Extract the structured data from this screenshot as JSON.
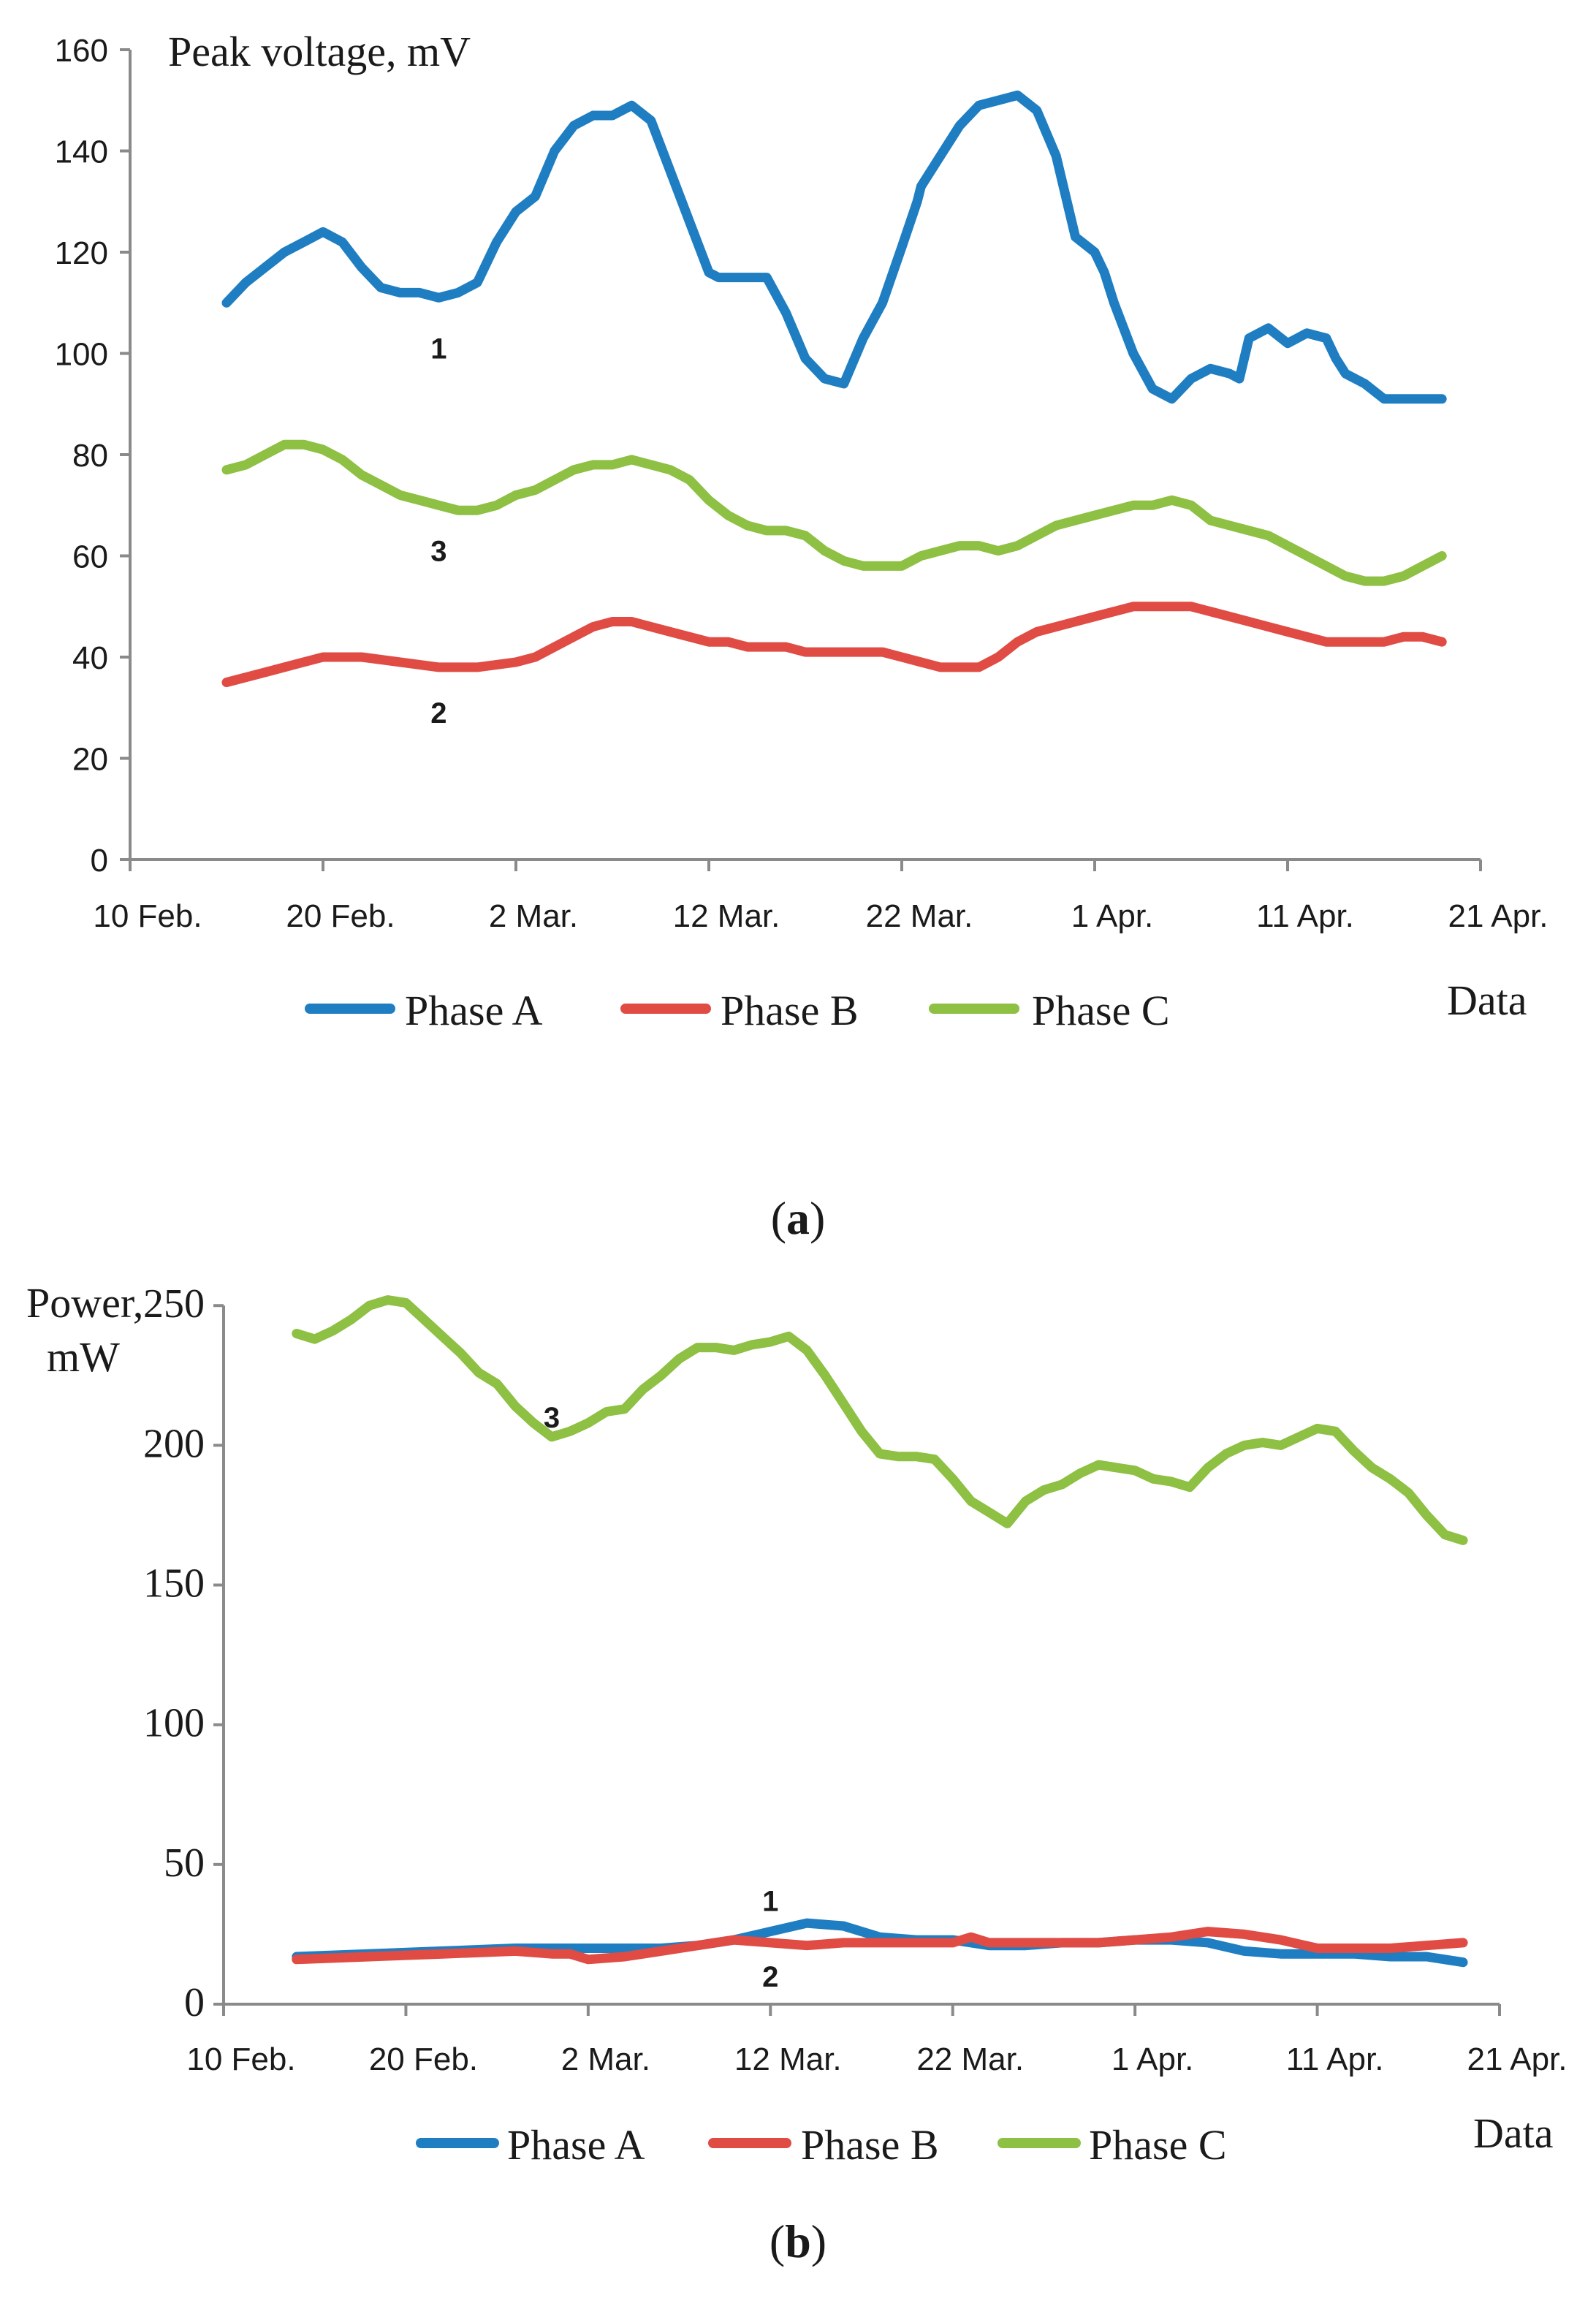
{
  "colors": {
    "phase_a": "#1F7EC2",
    "phase_b": "#E04B44",
    "phase_c": "#8DC043",
    "axis": "#8a8a8a",
    "text": "#1a1a1a"
  },
  "date_ticks": [
    "10 Feb.",
    "20 Feb.",
    "2 Mar.",
    "12 Mar.",
    "22 Mar.",
    "1 Apr.",
    "11 Apr.",
    "21 Apr."
  ],
  "chart_data": [
    {
      "id": "a",
      "type": "line",
      "panel_label": "(a)",
      "panel_letter": "a",
      "title": "",
      "ylabel": "Peak voltage, mV",
      "xlabel": "Data",
      "x_unit": "days since 10 Feb.",
      "xlim": [
        0,
        70
      ],
      "ylim": [
        0,
        160
      ],
      "yticks": [
        0,
        20,
        40,
        60,
        80,
        100,
        120,
        140,
        160
      ],
      "ytick_labels": [
        "0",
        "20",
        "40",
        "60",
        "80",
        "100",
        "120",
        "140",
        "160"
      ],
      "xticks": [
        0,
        10,
        20,
        30,
        40,
        50,
        60,
        70
      ],
      "xtick_labels": [
        "10 Feb.",
        "20 Feb.",
        "2 Mar.",
        "12 Mar.",
        "22 Mar.",
        "1 Apr.",
        "11 Apr.",
        "21 Apr."
      ],
      "legend": [
        "Phase A",
        "Phase B",
        "Phase C"
      ],
      "legend_position": "bottom",
      "grid": false,
      "annotations": [
        {
          "text": "1",
          "x": 16,
          "y": 101
        },
        {
          "text": "3",
          "x": 16,
          "y": 61
        },
        {
          "text": "2",
          "x": 16,
          "y": 29
        }
      ],
      "series": [
        {
          "name": "Phase A",
          "color_key": "phase_a",
          "x": [
            5,
            6,
            7,
            8,
            9,
            10,
            11,
            12,
            13,
            14,
            15,
            16,
            17,
            18,
            19,
            20,
            21,
            22,
            23,
            24,
            25,
            26,
            27,
            28,
            29,
            30,
            30.5,
            31,
            32,
            33,
            34,
            35,
            36,
            37,
            38,
            39,
            40,
            40.8,
            41,
            42,
            43,
            44,
            45,
            46,
            47,
            48,
            49,
            50,
            50.5,
            51,
            52,
            53,
            54,
            55,
            56,
            57,
            57.5,
            58,
            59,
            60,
            61,
            62,
            62.5,
            63,
            64,
            65,
            66,
            67,
            68
          ],
          "y": [
            110,
            114,
            117,
            120,
            122,
            124,
            122,
            117,
            113,
            112,
            112,
            111,
            112,
            114,
            122,
            128,
            131,
            140,
            145,
            147,
            147,
            149,
            146,
            136,
            126,
            116,
            115,
            115,
            115,
            115,
            108,
            99,
            95,
            94,
            103,
            110,
            121,
            130,
            133,
            139,
            145,
            149,
            150,
            151,
            148,
            139,
            123,
            120,
            116,
            110,
            100,
            93,
            91,
            95,
            97,
            96,
            95,
            103,
            105,
            102,
            104,
            103,
            99,
            96,
            94,
            91,
            91,
            91,
            91
          ]
        },
        {
          "name": "Phase B",
          "color_key": "phase_b",
          "x": [
            5,
            7,
            9,
            10,
            11,
            12,
            14,
            16,
            17,
            18,
            20,
            21,
            22,
            23,
            24,
            25,
            26,
            27,
            28,
            29,
            30,
            31,
            32,
            33,
            34,
            35,
            36,
            37,
            38,
            39,
            40,
            41,
            42,
            43,
            44,
            45,
            46,
            47,
            48,
            49,
            50,
            51,
            52,
            53,
            54,
            55,
            56,
            57,
            58,
            59,
            60,
            61,
            62,
            63,
            64,
            65,
            66,
            67,
            68
          ],
          "y": [
            35,
            37,
            39,
            40,
            40,
            40,
            39,
            38,
            38,
            38,
            39,
            40,
            42,
            44,
            46,
            47,
            47,
            46,
            45,
            44,
            43,
            43,
            42,
            42,
            42,
            41,
            41,
            41,
            41,
            41,
            40,
            39,
            38,
            38,
            38,
            40,
            43,
            45,
            46,
            47,
            48,
            49,
            50,
            50,
            50,
            50,
            49,
            48,
            47,
            46,
            45,
            44,
            43,
            43,
            43,
            43,
            44,
            44,
            43
          ]
        },
        {
          "name": "Phase C",
          "color_key": "phase_c",
          "x": [
            5,
            6,
            7,
            8,
            9,
            10,
            11,
            12,
            13,
            14,
            15,
            16,
            17,
            18,
            19,
            20,
            21,
            22,
            23,
            24,
            25,
            26,
            27,
            28,
            29,
            30,
            31,
            32,
            33,
            34,
            35,
            36,
            37,
            38,
            39,
            40,
            41,
            42,
            43,
            44,
            45,
            46,
            47,
            48,
            49,
            50,
            51,
            52,
            53,
            54,
            55,
            56,
            57,
            58,
            59,
            60,
            61,
            62,
            63,
            64,
            65,
            66,
            67,
            68
          ],
          "y": [
            77,
            78,
            80,
            82,
            82,
            81,
            79,
            76,
            74,
            72,
            71,
            70,
            69,
            69,
            70,
            72,
            73,
            75,
            77,
            78,
            78,
            79,
            78,
            77,
            75,
            71,
            68,
            66,
            65,
            65,
            64,
            61,
            59,
            58,
            58,
            58,
            60,
            61,
            62,
            62,
            61,
            62,
            64,
            66,
            67,
            68,
            69,
            70,
            70,
            71,
            70,
            67,
            66,
            65,
            64,
            62,
            60,
            58,
            56,
            55,
            55,
            56,
            58,
            60
          ]
        }
      ]
    },
    {
      "id": "b",
      "type": "line",
      "panel_label": "(b)",
      "panel_letter": "b",
      "title": "",
      "ylabel": "Power,",
      "ylabel_line2": "mW",
      "xlabel": "Data",
      "x_unit": "days since 10 Feb.",
      "xlim": [
        0,
        70
      ],
      "ylim": [
        0,
        260
      ],
      "yticks": [
        0,
        50,
        100,
        150,
        200,
        250
      ],
      "ytick_labels": [
        "0",
        "50",
        "100",
        "150",
        "200",
        "250"
      ],
      "xticks": [
        0,
        10,
        20,
        30,
        40,
        50,
        60,
        70
      ],
      "xtick_labels": [
        "10 Feb.",
        "20 Feb.",
        "2 Mar.",
        "12 Mar.",
        "22 Mar.",
        "1 Apr.",
        "11 Apr.",
        "21 Apr."
      ],
      "legend": [
        "Phase A",
        "Phase B",
        "Phase C"
      ],
      "legend_position": "bottom",
      "grid": false,
      "annotations": [
        {
          "text": "3",
          "x": 18,
          "y": 210
        },
        {
          "text": "1",
          "x": 30,
          "y": 37
        },
        {
          "text": "2",
          "x": 30,
          "y": 10
        }
      ],
      "series": [
        {
          "name": "Phase A",
          "color_key": "phase_a",
          "x": [
            4,
            8,
            12,
            16,
            20,
            24,
            26,
            28,
            30,
            32,
            34,
            36,
            38,
            40,
            42,
            44,
            46,
            48,
            50,
            52,
            54,
            56,
            58,
            60,
            62,
            64,
            66,
            68
          ],
          "y": [
            17,
            18,
            19,
            20,
            20,
            20,
            21,
            23,
            26,
            29,
            28,
            24,
            23,
            23,
            21,
            21,
            22,
            22,
            23,
            23,
            22,
            19,
            18,
            18,
            18,
            17,
            17,
            15
          ]
        },
        {
          "name": "Phase B",
          "color_key": "phase_b",
          "x": [
            4,
            8,
            12,
            16,
            18,
            19,
            20,
            22,
            24,
            26,
            28,
            30,
            32,
            34,
            36,
            38,
            40,
            41,
            42,
            44,
            46,
            48,
            50,
            52,
            54,
            56,
            58,
            60,
            62,
            64,
            66,
            68
          ],
          "y": [
            16,
            17,
            18,
            19,
            18,
            18,
            16,
            17,
            19,
            21,
            23,
            22,
            21,
            22,
            22,
            22,
            22,
            24,
            22,
            22,
            22,
            22,
            23,
            24,
            26,
            25,
            23,
            20,
            20,
            20,
            21,
            22
          ]
        },
        {
          "name": "Phase C",
          "color_key": "phase_c",
          "x": [
            4,
            5,
            6,
            7,
            8,
            9,
            10,
            11,
            12,
            13,
            14,
            15,
            16,
            17,
            18,
            19,
            20,
            21,
            22,
            23,
            24,
            25,
            26,
            27,
            28,
            29,
            30,
            31,
            32,
            33,
            34,
            35,
            36,
            37,
            38,
            39,
            40,
            41,
            42,
            43,
            44,
            45,
            46,
            47,
            48,
            49,
            50,
            51,
            52,
            53,
            54,
            55,
            56,
            57,
            58,
            59,
            60,
            61,
            62,
            63,
            64,
            65,
            66,
            67,
            68
          ],
          "y": [
            240,
            238,
            241,
            245,
            250,
            252,
            251,
            245,
            239,
            233,
            226,
            222,
            214,
            208,
            203,
            205,
            208,
            212,
            213,
            220,
            225,
            231,
            235,
            235,
            234,
            236,
            237,
            239,
            234,
            225,
            215,
            205,
            197,
            196,
            196,
            195,
            188,
            180,
            176,
            172,
            180,
            184,
            186,
            190,
            193,
            192,
            191,
            188,
            187,
            185,
            192,
            197,
            200,
            201,
            200,
            203,
            206,
            205,
            198,
            192,
            188,
            183,
            175,
            168,
            166
          ]
        }
      ]
    }
  ]
}
